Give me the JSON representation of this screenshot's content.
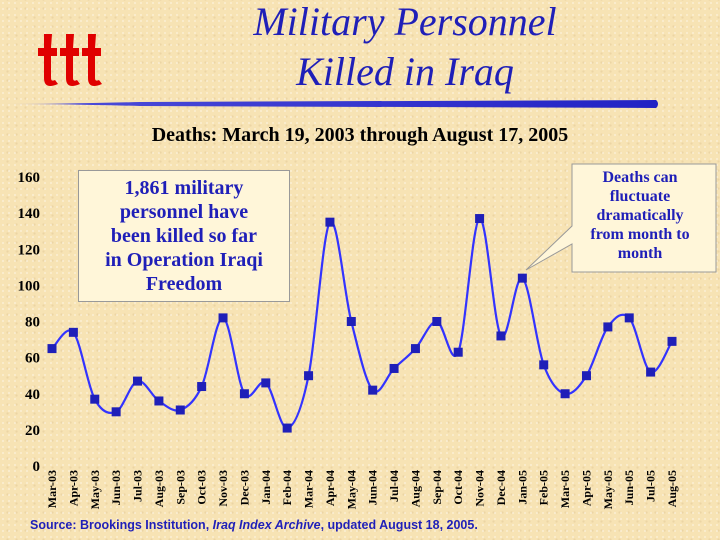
{
  "title_line1": "Military Personnel",
  "title_line2": "Killed in Iraq",
  "subtitle": "Deaths: March 19, 2003 through August 17, 2005",
  "callout_left": "1,861 military\npersonnel have\nbeen killed so far\nin Operation Iraqi\nFreedom",
  "callout_right": "Deaths can\nfluctuate\ndramatically\nfrom month to\nmonth",
  "source": {
    "prefix": "Source:  Brookings Institution, ",
    "italic": "Iraq Index Archive",
    "suffix": ", updated August 18, 2005."
  },
  "colors": {
    "title": "#1f1fb8",
    "series_line": "#3333ff",
    "marker": "#1f1fb8",
    "logo": "#e00000",
    "background": "#f7e3b4"
  },
  "icons": {
    "logo": "ttt-logo-icon"
  },
  "chart_data": {
    "type": "line",
    "title": "",
    "xlabel": "",
    "ylabel": "",
    "ylim": [
      0,
      160
    ],
    "yticks": [
      0,
      20,
      40,
      60,
      80,
      100,
      120,
      140,
      160
    ],
    "grid": false,
    "smooth": true,
    "categories": [
      "Mar-03",
      "Apr-03",
      "May-03",
      "Jun-03",
      "Jul-03",
      "Aug-03",
      "Sep-03",
      "Oct-03",
      "Nov-03",
      "Dec-03",
      "Jan-04",
      "Feb-04",
      "Mar-04",
      "Apr-04",
      "May-04",
      "Jun-04",
      "Jul-04",
      "Aug-04",
      "Sep-04",
      "Oct-04",
      "Nov-04",
      "Dec-04",
      "Jan-05",
      "Feb-05",
      "Mar-05",
      "Apr-05",
      "May-05",
      "Jun-05",
      "Jul-05",
      "Aug-05"
    ],
    "values": [
      65,
      74,
      37,
      30,
      47,
      36,
      31,
      44,
      82,
      40,
      46,
      21,
      50,
      135,
      80,
      42,
      54,
      65,
      80,
      63,
      137,
      72,
      104,
      56,
      40,
      50,
      77,
      82,
      52,
      69
    ]
  }
}
